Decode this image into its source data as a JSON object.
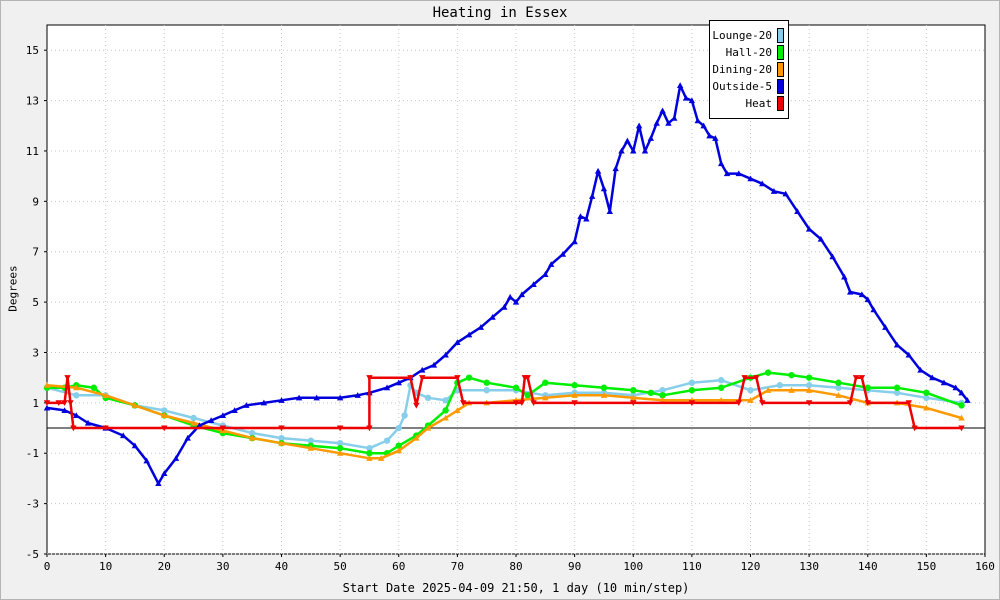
{
  "chart_data": {
    "type": "line",
    "title": "Heating in Essex",
    "xlabel": "Start Date 2025-04-09 21:50, 1 day (10 min/step)",
    "ylabel": "Degrees",
    "xlim": [
      0,
      160
    ],
    "ylim": [
      -5,
      16
    ],
    "x_ticks": [
      0,
      10,
      20,
      30,
      40,
      50,
      60,
      70,
      80,
      90,
      100,
      110,
      120,
      130,
      140,
      150,
      160
    ],
    "y_ticks": [
      -5,
      -3,
      -1,
      1,
      3,
      5,
      7,
      9,
      11,
      13,
      15
    ],
    "grid": true,
    "legend_position": "top-right",
    "series": [
      {
        "name": "Lounge-20",
        "color": "#87ceeb",
        "marker": "circle",
        "points": [
          [
            0,
            1.6
          ],
          [
            5,
            1.3
          ],
          [
            10,
            1.3
          ],
          [
            15,
            0.9
          ],
          [
            20,
            0.7
          ],
          [
            25,
            0.4
          ],
          [
            30,
            0.1
          ],
          [
            35,
            -0.2
          ],
          [
            40,
            -0.4
          ],
          [
            45,
            -0.5
          ],
          [
            50,
            -0.6
          ],
          [
            55,
            -0.8
          ],
          [
            58,
            -0.5
          ],
          [
            60,
            0.0
          ],
          [
            61,
            0.5
          ],
          [
            62,
            1.7
          ],
          [
            63,
            1.4
          ],
          [
            65,
            1.2
          ],
          [
            68,
            1.1
          ],
          [
            70,
            1.5
          ],
          [
            75,
            1.5
          ],
          [
            80,
            1.5
          ],
          [
            85,
            1.3
          ],
          [
            90,
            1.4
          ],
          [
            95,
            1.4
          ],
          [
            100,
            1.3
          ],
          [
            105,
            1.5
          ],
          [
            110,
            1.8
          ],
          [
            115,
            1.9
          ],
          [
            120,
            1.5
          ],
          [
            125,
            1.7
          ],
          [
            130,
            1.7
          ],
          [
            135,
            1.6
          ],
          [
            140,
            1.5
          ],
          [
            145,
            1.4
          ],
          [
            150,
            1.2
          ],
          [
            156,
            1.0
          ]
        ]
      },
      {
        "name": "Hall-20",
        "color": "#00ee00",
        "marker": "circle",
        "points": [
          [
            0,
            1.6
          ],
          [
            3,
            1.6
          ],
          [
            5,
            1.7
          ],
          [
            8,
            1.6
          ],
          [
            10,
            1.2
          ],
          [
            15,
            0.9
          ],
          [
            20,
            0.5
          ],
          [
            25,
            0.1
          ],
          [
            30,
            -0.2
          ],
          [
            35,
            -0.4
          ],
          [
            40,
            -0.6
          ],
          [
            45,
            -0.7
          ],
          [
            50,
            -0.8
          ],
          [
            55,
            -1.0
          ],
          [
            58,
            -1.0
          ],
          [
            60,
            -0.7
          ],
          [
            63,
            -0.3
          ],
          [
            65,
            0.1
          ],
          [
            68,
            0.7
          ],
          [
            70,
            1.8
          ],
          [
            72,
            2.0
          ],
          [
            75,
            1.8
          ],
          [
            80,
            1.6
          ],
          [
            82,
            1.3
          ],
          [
            85,
            1.8
          ],
          [
            90,
            1.7
          ],
          [
            95,
            1.6
          ],
          [
            100,
            1.5
          ],
          [
            103,
            1.4
          ],
          [
            105,
            1.3
          ],
          [
            110,
            1.5
          ],
          [
            115,
            1.6
          ],
          [
            120,
            2.0
          ],
          [
            123,
            2.2
          ],
          [
            127,
            2.1
          ],
          [
            130,
            2.0
          ],
          [
            135,
            1.8
          ],
          [
            140,
            1.6
          ],
          [
            145,
            1.6
          ],
          [
            150,
            1.4
          ],
          [
            156,
            0.9
          ]
        ]
      },
      {
        "name": "Dining-20",
        "color": "#ff9900",
        "marker": "triangle",
        "points": [
          [
            0,
            1.7
          ],
          [
            5,
            1.6
          ],
          [
            10,
            1.3
          ],
          [
            15,
            0.9
          ],
          [
            20,
            0.5
          ],
          [
            25,
            0.2
          ],
          [
            30,
            -0.1
          ],
          [
            35,
            -0.4
          ],
          [
            40,
            -0.6
          ],
          [
            45,
            -0.8
          ],
          [
            50,
            -1.0
          ],
          [
            55,
            -1.2
          ],
          [
            57,
            -1.2
          ],
          [
            60,
            -0.9
          ],
          [
            63,
            -0.4
          ],
          [
            65,
            0.0
          ],
          [
            68,
            0.4
          ],
          [
            70,
            0.7
          ],
          [
            72,
            1.0
          ],
          [
            75,
            1.0
          ],
          [
            80,
            1.1
          ],
          [
            85,
            1.2
          ],
          [
            90,
            1.3
          ],
          [
            95,
            1.3
          ],
          [
            100,
            1.2
          ],
          [
            105,
            1.1
          ],
          [
            110,
            1.1
          ],
          [
            115,
            1.1
          ],
          [
            120,
            1.1
          ],
          [
            123,
            1.5
          ],
          [
            127,
            1.5
          ],
          [
            130,
            1.5
          ],
          [
            135,
            1.3
          ],
          [
            140,
            1.0
          ],
          [
            145,
            1.0
          ],
          [
            150,
            0.8
          ],
          [
            156,
            0.4
          ]
        ]
      },
      {
        "name": "Outside-5",
        "color": "#0000dd",
        "marker": "triangle",
        "points": [
          [
            0,
            0.8
          ],
          [
            3,
            0.7
          ],
          [
            5,
            0.5
          ],
          [
            7,
            0.2
          ],
          [
            10,
            0.0
          ],
          [
            13,
            -0.3
          ],
          [
            15,
            -0.7
          ],
          [
            17,
            -1.3
          ],
          [
            19,
            -2.2
          ],
          [
            20,
            -1.8
          ],
          [
            22,
            -1.2
          ],
          [
            24,
            -0.4
          ],
          [
            26,
            0.1
          ],
          [
            28,
            0.3
          ],
          [
            30,
            0.5
          ],
          [
            32,
            0.7
          ],
          [
            34,
            0.9
          ],
          [
            37,
            1.0
          ],
          [
            40,
            1.1
          ],
          [
            43,
            1.2
          ],
          [
            46,
            1.2
          ],
          [
            50,
            1.2
          ],
          [
            53,
            1.3
          ],
          [
            55,
            1.4
          ],
          [
            58,
            1.6
          ],
          [
            60,
            1.8
          ],
          [
            62,
            2.0
          ],
          [
            64,
            2.3
          ],
          [
            66,
            2.5
          ],
          [
            68,
            2.9
          ],
          [
            70,
            3.4
          ],
          [
            72,
            3.7
          ],
          [
            74,
            4.0
          ],
          [
            76,
            4.4
          ],
          [
            78,
            4.8
          ],
          [
            79,
            5.2
          ],
          [
            80,
            5.0
          ],
          [
            81,
            5.3
          ],
          [
            83,
            5.7
          ],
          [
            85,
            6.1
          ],
          [
            86,
            6.5
          ],
          [
            88,
            6.9
          ],
          [
            90,
            7.4
          ],
          [
            91,
            8.4
          ],
          [
            92,
            8.3
          ],
          [
            93,
            9.2
          ],
          [
            94,
            10.2
          ],
          [
            95,
            9.5
          ],
          [
            96,
            8.6
          ],
          [
            97,
            10.3
          ],
          [
            98,
            11.0
          ],
          [
            99,
            11.4
          ],
          [
            100,
            11.0
          ],
          [
            101,
            12.0
          ],
          [
            102,
            11.0
          ],
          [
            103,
            11.5
          ],
          [
            104,
            12.1
          ],
          [
            105,
            12.6
          ],
          [
            106,
            12.1
          ],
          [
            107,
            12.3
          ],
          [
            108,
            13.6
          ],
          [
            109,
            13.1
          ],
          [
            110,
            13.0
          ],
          [
            111,
            12.2
          ],
          [
            112,
            12.0
          ],
          [
            113,
            11.6
          ],
          [
            114,
            11.5
          ],
          [
            115,
            10.5
          ],
          [
            116,
            10.1
          ],
          [
            118,
            10.1
          ],
          [
            120,
            9.9
          ],
          [
            122,
            9.7
          ],
          [
            124,
            9.4
          ],
          [
            126,
            9.3
          ],
          [
            128,
            8.6
          ],
          [
            130,
            7.9
          ],
          [
            132,
            7.5
          ],
          [
            134,
            6.8
          ],
          [
            136,
            6.0
          ],
          [
            137,
            5.4
          ],
          [
            139,
            5.3
          ],
          [
            140,
            5.1
          ],
          [
            141,
            4.7
          ],
          [
            143,
            4.0
          ],
          [
            145,
            3.3
          ],
          [
            147,
            2.9
          ],
          [
            149,
            2.3
          ],
          [
            151,
            2.0
          ],
          [
            153,
            1.8
          ],
          [
            155,
            1.6
          ],
          [
            156,
            1.4
          ],
          [
            157,
            1.1
          ]
        ]
      },
      {
        "name": "Heat",
        "color": "#ee0000",
        "marker": "triangle-down",
        "points": [
          [
            0,
            1.0
          ],
          [
            2,
            1.0
          ],
          [
            3,
            1.0
          ],
          [
            3.5,
            2.0
          ],
          [
            4,
            1.0
          ],
          [
            4.5,
            0.0
          ],
          [
            10,
            0.0
          ],
          [
            20,
            0.0
          ],
          [
            30,
            0.0
          ],
          [
            40,
            0.0
          ],
          [
            50,
            0.0
          ],
          [
            55,
            0.0
          ],
          [
            55,
            2.0
          ],
          [
            62,
            2.0
          ],
          [
            63,
            0.9
          ],
          [
            64,
            2.0
          ],
          [
            70,
            2.0
          ],
          [
            71,
            1.0
          ],
          [
            80,
            1.0
          ],
          [
            81,
            1.0
          ],
          [
            81.5,
            2.0
          ],
          [
            82,
            2.0
          ],
          [
            83,
            1.0
          ],
          [
            90,
            1.0
          ],
          [
            100,
            1.0
          ],
          [
            110,
            1.0
          ],
          [
            118,
            1.0
          ],
          [
            119,
            2.0
          ],
          [
            121,
            2.0
          ],
          [
            122,
            1.0
          ],
          [
            130,
            1.0
          ],
          [
            137,
            1.0
          ],
          [
            138,
            2.0
          ],
          [
            139,
            2.0
          ],
          [
            140,
            1.0
          ],
          [
            147,
            1.0
          ],
          [
            148,
            0.0
          ],
          [
            156,
            0.0
          ]
        ]
      }
    ]
  }
}
